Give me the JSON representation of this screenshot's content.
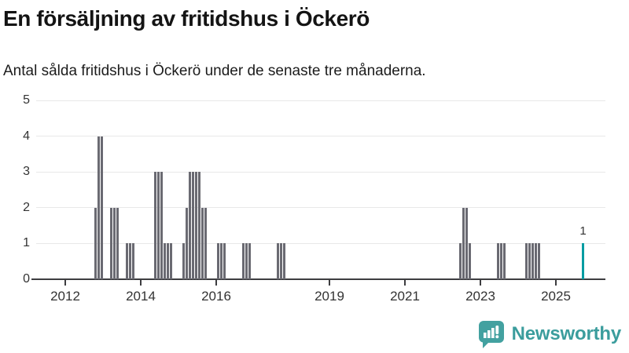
{
  "header": {
    "title": "En försäljning av fritidshus i Öckerö",
    "subtitle": "Antal sålda fritidshus i Öckerö under de senaste tre månaderna."
  },
  "colors": {
    "bar": "#6a6a72",
    "highlight": "#009ca2",
    "gridline": "#e8e8e8",
    "axis": "#3d3d40",
    "axis_text": "#333333",
    "logo": "#3b9d9d"
  },
  "chart_data": {
    "type": "bar",
    "title": "En försäljning av fritidshus i Öckerö",
    "xlabel": "",
    "ylabel": "",
    "ylim": [
      0,
      5
    ],
    "y_ticks": [
      0,
      1,
      2,
      3,
      4,
      5
    ],
    "x_tick_years": [
      "2012",
      "2014",
      "2016",
      "2019",
      "2021",
      "2023",
      "2025"
    ],
    "grid": true,
    "legend": "none",
    "points": [
      {
        "x": "2012-10",
        "y": 2
      },
      {
        "x": "2012-11",
        "y": 4
      },
      {
        "x": "2012-12",
        "y": 4
      },
      {
        "x": "2013-03",
        "y": 2
      },
      {
        "x": "2013-04",
        "y": 2
      },
      {
        "x": "2013-05",
        "y": 2
      },
      {
        "x": "2013-08",
        "y": 1
      },
      {
        "x": "2013-09",
        "y": 1
      },
      {
        "x": "2013-10",
        "y": 1
      },
      {
        "x": "2014-05",
        "y": 3
      },
      {
        "x": "2014-06",
        "y": 3
      },
      {
        "x": "2014-07",
        "y": 3
      },
      {
        "x": "2014-08",
        "y": 1
      },
      {
        "x": "2014-09",
        "y": 1
      },
      {
        "x": "2014-10",
        "y": 1
      },
      {
        "x": "2015-02",
        "y": 1
      },
      {
        "x": "2015-03",
        "y": 2
      },
      {
        "x": "2015-04",
        "y": 3
      },
      {
        "x": "2015-05",
        "y": 3
      },
      {
        "x": "2015-06",
        "y": 3
      },
      {
        "x": "2015-07",
        "y": 3
      },
      {
        "x": "2015-08",
        "y": 2
      },
      {
        "x": "2015-09",
        "y": 2
      },
      {
        "x": "2016-01",
        "y": 1
      },
      {
        "x": "2016-02",
        "y": 1
      },
      {
        "x": "2016-03",
        "y": 1
      },
      {
        "x": "2016-09",
        "y": 1
      },
      {
        "x": "2016-10",
        "y": 1
      },
      {
        "x": "2016-11",
        "y": 1
      },
      {
        "x": "2017-08",
        "y": 1
      },
      {
        "x": "2017-09",
        "y": 1
      },
      {
        "x": "2017-10",
        "y": 1
      },
      {
        "x": "2022-06",
        "y": 1
      },
      {
        "x": "2022-07",
        "y": 2
      },
      {
        "x": "2022-08",
        "y": 2
      },
      {
        "x": "2022-09",
        "y": 1
      },
      {
        "x": "2023-06",
        "y": 1
      },
      {
        "x": "2023-07",
        "y": 1
      },
      {
        "x": "2023-08",
        "y": 1
      },
      {
        "x": "2024-03",
        "y": 1
      },
      {
        "x": "2024-04",
        "y": 1
      },
      {
        "x": "2024-05",
        "y": 1
      },
      {
        "x": "2024-06",
        "y": 1
      },
      {
        "x": "2024-07",
        "y": 1
      },
      {
        "x": "2025-09",
        "y": 1,
        "highlight": true
      }
    ],
    "highlight_value_label": "1"
  },
  "branding": {
    "logo_text": "Newsworthy",
    "logo_icon": "bar-chart-speech-bubble-icon"
  }
}
